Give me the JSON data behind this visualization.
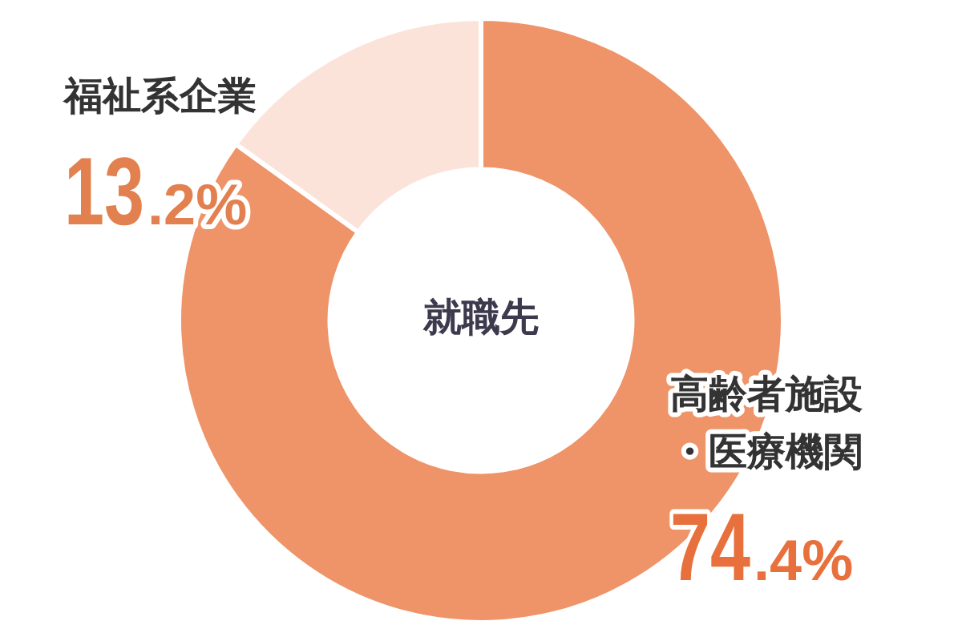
{
  "chart_data": {
    "type": "donut",
    "title": "就職先",
    "categories": [
      "高齢者施設・医療機関",
      "福祉系企業"
    ],
    "values": [
      74.4,
      13.2
    ],
    "colors": [
      "#ee9468",
      "#fbe3d9"
    ],
    "value_labels": [
      "74.4%",
      "13.2%"
    ],
    "legend": false
  }
}
